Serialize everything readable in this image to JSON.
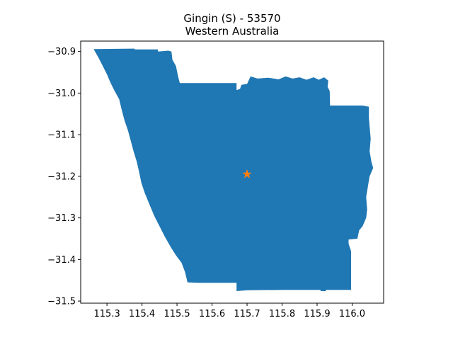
{
  "title": {
    "line1": "Gingin (S) - 53570",
    "line2": "Western Australia"
  },
  "colors": {
    "region_fill": "#1f77b4",
    "marker": "#ff7f0e",
    "axis": "#000000",
    "background": "#ffffff"
  },
  "map": {
    "region_name": "Gingin (S)",
    "region_code": "53570",
    "state": "Western Australia",
    "marker_lon": 115.7,
    "marker_lat": -31.195,
    "marker_icon": "star-icon",
    "outline_lonlat": [
      [
        115.262,
        -30.894
      ],
      [
        115.378,
        -30.893
      ],
      [
        115.38,
        -30.895
      ],
      [
        115.445,
        -30.895
      ],
      [
        115.446,
        -30.9
      ],
      [
        115.475,
        -30.898
      ],
      [
        115.484,
        -30.9
      ],
      [
        115.487,
        -30.92
      ],
      [
        115.497,
        -30.935
      ],
      [
        115.503,
        -30.96
      ],
      [
        115.508,
        -30.976
      ],
      [
        115.67,
        -30.976
      ],
      [
        115.67,
        -30.993
      ],
      [
        115.68,
        -30.99
      ],
      [
        115.684,
        -30.98
      ],
      [
        115.7,
        -30.978
      ],
      [
        115.71,
        -30.96
      ],
      [
        115.73,
        -30.965
      ],
      [
        115.76,
        -30.963
      ],
      [
        115.79,
        -30.967
      ],
      [
        115.81,
        -30.96
      ],
      [
        115.83,
        -30.965
      ],
      [
        115.85,
        -30.962
      ],
      [
        115.87,
        -30.968
      ],
      [
        115.89,
        -30.962
      ],
      [
        115.905,
        -30.968
      ],
      [
        115.92,
        -30.962
      ],
      [
        115.932,
        -30.97
      ],
      [
        115.93,
        -30.985
      ],
      [
        115.936,
        -30.995
      ],
      [
        115.937,
        -31.03
      ],
      [
        115.99,
        -31.03
      ],
      [
        116.03,
        -31.03
      ],
      [
        116.048,
        -31.033
      ],
      [
        116.048,
        -31.06
      ],
      [
        116.053,
        -31.11
      ],
      [
        116.05,
        -31.14
      ],
      [
        116.055,
        -31.165
      ],
      [
        116.06,
        -31.18
      ],
      [
        116.05,
        -31.2
      ],
      [
        116.046,
        -31.22
      ],
      [
        116.04,
        -31.25
      ],
      [
        116.043,
        -31.28
      ],
      [
        116.04,
        -31.3
      ],
      [
        116.03,
        -31.32
      ],
      [
        116.02,
        -31.33
      ],
      [
        116.015,
        -31.35
      ],
      [
        115.99,
        -31.352
      ],
      [
        115.99,
        -31.362
      ],
      [
        115.997,
        -31.38
      ],
      [
        115.997,
        -31.473
      ],
      [
        115.925,
        -31.473
      ],
      [
        115.925,
        -31.476
      ],
      [
        115.91,
        -31.476
      ],
      [
        115.91,
        -31.473
      ],
      [
        115.81,
        -31.473
      ],
      [
        115.7,
        -31.474
      ],
      [
        115.67,
        -31.476
      ],
      [
        115.67,
        -31.456
      ],
      [
        115.56,
        -31.456
      ],
      [
        115.53,
        -31.455
      ],
      [
        115.523,
        -31.43
      ],
      [
        115.513,
        -31.408
      ],
      [
        115.497,
        -31.39
      ],
      [
        115.482,
        -31.37
      ],
      [
        115.465,
        -31.345
      ],
      [
        115.45,
        -31.32
      ],
      [
        115.435,
        -31.295
      ],
      [
        115.42,
        -31.265
      ],
      [
        115.408,
        -31.24
      ],
      [
        115.398,
        -31.215
      ],
      [
        115.392,
        -31.19
      ],
      [
        115.385,
        -31.165
      ],
      [
        115.376,
        -31.14
      ],
      [
        115.368,
        -31.115
      ],
      [
        115.36,
        -31.09
      ],
      [
        115.35,
        -31.065
      ],
      [
        115.342,
        -31.04
      ],
      [
        115.335,
        -31.015
      ],
      [
        115.322,
        -30.995
      ],
      [
        115.31,
        -30.975
      ],
      [
        115.3,
        -30.955
      ],
      [
        115.288,
        -30.935
      ],
      [
        115.276,
        -30.915
      ],
      [
        115.262,
        -30.894
      ]
    ]
  },
  "axes": {
    "xlim": [
      115.225,
      116.09
    ],
    "ylim": [
      -31.505,
      -30.875
    ],
    "xticks": [
      "115.3",
      "115.4",
      "115.5",
      "115.6",
      "115.7",
      "115.8",
      "115.9",
      "116.0"
    ],
    "xtick_values": [
      115.3,
      115.4,
      115.5,
      115.6,
      115.7,
      115.8,
      115.9,
      116.0
    ],
    "yticks": [
      "−30.9",
      "−31.0",
      "−31.1",
      "−31.2",
      "−31.3",
      "−31.4",
      "−31.5"
    ],
    "ytick_values": [
      -30.9,
      -31.0,
      -31.1,
      -31.2,
      -31.3,
      -31.4,
      -31.5
    ]
  }
}
